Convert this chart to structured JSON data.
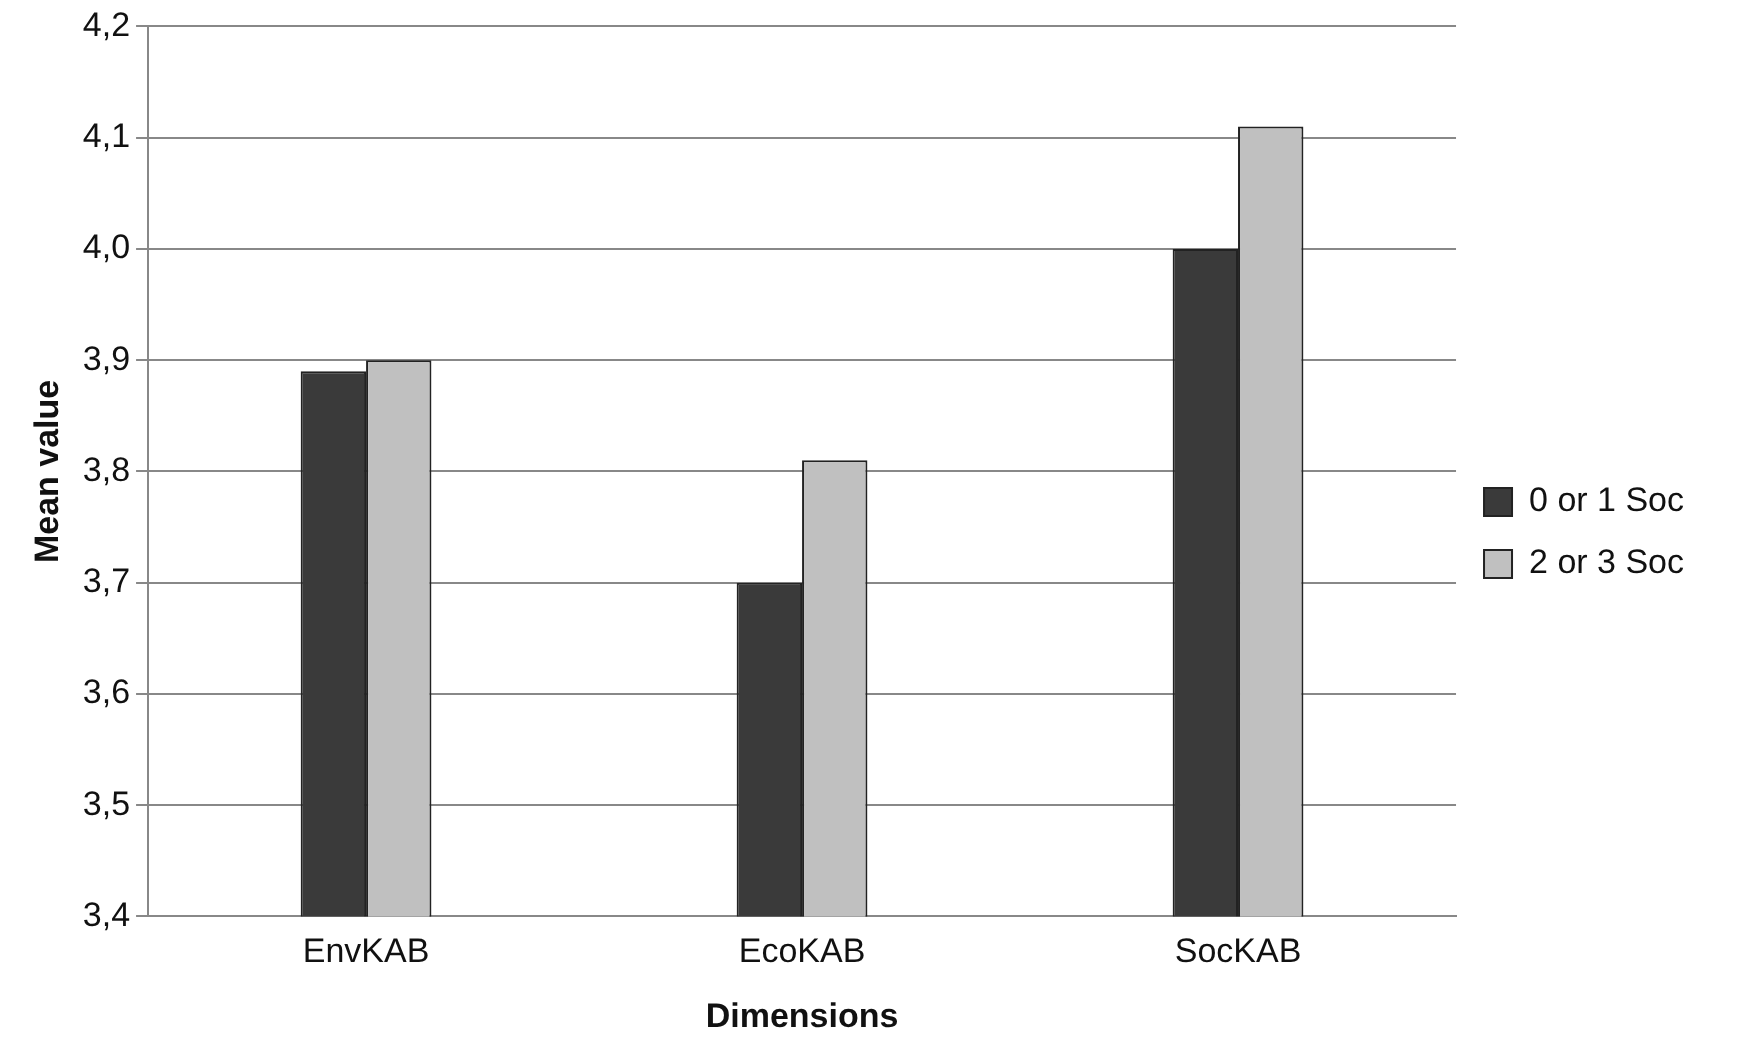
{
  "chart_data": {
    "type": "bar",
    "xlabel": "Dimensions",
    "ylabel": "Mean value",
    "categories": [
      "EnvKAB",
      "EcoKAB",
      "SocKAB"
    ],
    "series": [
      {
        "name": "0 or 1 Soc",
        "color": "#3a3a3a",
        "values": [
          3.89,
          3.7,
          4.0
        ]
      },
      {
        "name": "2 or 3 Soc",
        "color": "#c0c0c0",
        "values": [
          3.9,
          3.81,
          4.11
        ]
      }
    ],
    "ylim": [
      3.4,
      4.2
    ],
    "yticks": [
      {
        "value": 3.4,
        "label": "3,4"
      },
      {
        "value": 3.5,
        "label": "3,5"
      },
      {
        "value": 3.6,
        "label": "3,6"
      },
      {
        "value": 3.7,
        "label": "3,7"
      },
      {
        "value": 3.8,
        "label": "3,8"
      },
      {
        "value": 3.9,
        "label": "3,9"
      },
      {
        "value": 4.0,
        "label": "4,0"
      },
      {
        "value": 4.1,
        "label": "4,1"
      },
      {
        "value": 4.2,
        "label": "4,2"
      }
    ],
    "grid": "y",
    "legend": "right"
  }
}
